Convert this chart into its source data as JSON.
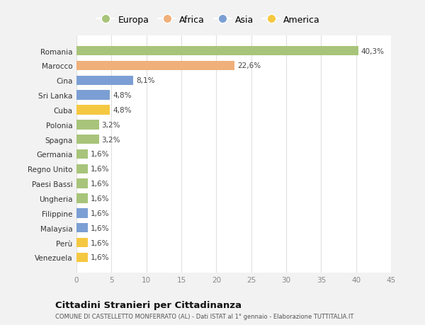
{
  "categories": [
    "Venezuela",
    "Perù",
    "Malaysia",
    "Filippine",
    "Ungheria",
    "Paesi Bassi",
    "Regno Unito",
    "Germania",
    "Spagna",
    "Polonia",
    "Cuba",
    "Sri Lanka",
    "Cina",
    "Marocco",
    "Romania"
  ],
  "values": [
    1.6,
    1.6,
    1.6,
    1.6,
    1.6,
    1.6,
    1.6,
    1.6,
    3.2,
    3.2,
    4.8,
    4.8,
    8.1,
    22.6,
    40.3
  ],
  "colors": [
    "#f5c842",
    "#f5c842",
    "#7b9fd4",
    "#7b9fd4",
    "#a8c47a",
    "#a8c47a",
    "#a8c47a",
    "#a8c47a",
    "#a8c47a",
    "#a8c47a",
    "#f5c842",
    "#7b9fd4",
    "#7b9fd4",
    "#f0b07a",
    "#a8c47a"
  ],
  "labels": [
    "1,6%",
    "1,6%",
    "1,6%",
    "1,6%",
    "1,6%",
    "1,6%",
    "1,6%",
    "1,6%",
    "3,2%",
    "3,2%",
    "4,8%",
    "4,8%",
    "8,1%",
    "22,6%",
    "40,3%"
  ],
  "legend_labels": [
    "Europa",
    "Africa",
    "Asia",
    "America"
  ],
  "legend_colors": [
    "#a8c47a",
    "#f0b07a",
    "#7b9fd4",
    "#f5c842"
  ],
  "title": "Cittadini Stranieri per Cittadinanza",
  "subtitle": "COMUNE DI CASTELLETTO MONFERRATO (AL) - Dati ISTAT al 1° gennaio - Elaborazione TUTTITALIA.IT",
  "xlim": [
    0,
    45
  ],
  "xticks": [
    0,
    5,
    10,
    15,
    20,
    25,
    30,
    35,
    40,
    45
  ],
  "bg_color": "#f2f2f2",
  "plot_bg_color": "#ffffff"
}
